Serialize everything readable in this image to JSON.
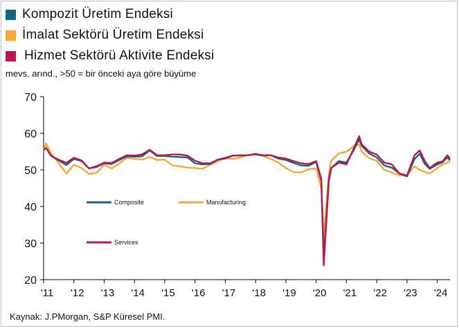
{
  "legend_top": [
    {
      "label": "Kompozit Üretim Endeksi",
      "color": "#17657c"
    },
    {
      "label": "İmalat Sektörü Üretim Endeksi",
      "color": "#f4a73c"
    },
    {
      "label": "Hizmet Sektörü Aktivite Endeksi",
      "color": "#b5194f"
    }
  ],
  "subtitle": "mevs. arınd., >50 = bir önceki aya göre büyüme",
  "source": "Kaynak: J.PMorgan, S&P Küresel PMI.",
  "chart_data": {
    "type": "line",
    "title": "",
    "xlabel": "",
    "ylabel": "",
    "ylim": [
      20,
      70
    ],
    "yticks": [
      20,
      30,
      40,
      50,
      60,
      70
    ],
    "xlim": [
      2011.0,
      2024.42
    ],
    "xticks": [
      "'11",
      "'12",
      "'13",
      "'14",
      "'15",
      "'16",
      "'17",
      "'18",
      "'19",
      "'20",
      "'21",
      "'22",
      "'23",
      "'24"
    ],
    "grid": false,
    "legend_inside": [
      {
        "label": "Composite",
        "color": "#17657c"
      },
      {
        "label": "Manufacturing",
        "color": "#f4a73c"
      },
      {
        "label": "Services",
        "color": "#b5194f"
      }
    ],
    "series": [
      {
        "name": "Composite",
        "color": "#17657c",
        "points": [
          [
            2011.0,
            55.5
          ],
          [
            2011.08,
            56.0
          ],
          [
            2011.25,
            53.8
          ],
          [
            2011.5,
            52.6
          ],
          [
            2011.75,
            51.3
          ],
          [
            2012.0,
            53.0
          ],
          [
            2012.25,
            52.4
          ],
          [
            2012.5,
            50.4
          ],
          [
            2012.75,
            50.8
          ],
          [
            2013.0,
            51.8
          ],
          [
            2013.25,
            51.6
          ],
          [
            2013.5,
            52.7
          ],
          [
            2013.75,
            53.7
          ],
          [
            2014.0,
            53.6
          ],
          [
            2014.25,
            53.7
          ],
          [
            2014.5,
            55.3
          ],
          [
            2014.75,
            53.8
          ],
          [
            2015.0,
            53.8
          ],
          [
            2015.25,
            53.6
          ],
          [
            2015.5,
            53.5
          ],
          [
            2015.75,
            53.4
          ],
          [
            2016.0,
            51.8
          ],
          [
            2016.25,
            51.5
          ],
          [
            2016.5,
            51.6
          ],
          [
            2016.75,
            52.8
          ],
          [
            2017.0,
            53.1
          ],
          [
            2017.25,
            53.9
          ],
          [
            2017.5,
            53.9
          ],
          [
            2017.75,
            54.0
          ],
          [
            2018.0,
            54.2
          ],
          [
            2018.25,
            53.9
          ],
          [
            2018.5,
            54.0
          ],
          [
            2018.75,
            53.1
          ],
          [
            2019.0,
            52.7
          ],
          [
            2019.25,
            51.9
          ],
          [
            2019.5,
            51.2
          ],
          [
            2019.75,
            51.1
          ],
          [
            2020.0,
            52.2
          ],
          [
            2020.17,
            47.0
          ],
          [
            2020.25,
            26.2
          ],
          [
            2020.33,
            36.0
          ],
          [
            2020.42,
            47.5
          ],
          [
            2020.5,
            50.5
          ],
          [
            2020.75,
            52.4
          ],
          [
            2021.0,
            52.0
          ],
          [
            2021.25,
            55.5
          ],
          [
            2021.42,
            58.4
          ],
          [
            2021.5,
            56.6
          ],
          [
            2021.75,
            54.5
          ],
          [
            2022.0,
            53.4
          ],
          [
            2022.25,
            51.2
          ],
          [
            2022.5,
            50.6
          ],
          [
            2022.75,
            49.0
          ],
          [
            2023.0,
            48.2
          ],
          [
            2023.25,
            53.0
          ],
          [
            2023.42,
            54.4
          ],
          [
            2023.58,
            51.7
          ],
          [
            2023.75,
            50.3
          ],
          [
            2024.0,
            51.5
          ],
          [
            2024.17,
            52.1
          ],
          [
            2024.33,
            53.4
          ],
          [
            2024.42,
            52.6
          ]
        ]
      },
      {
        "name": "Manufacturing",
        "color": "#f4a73c",
        "points": [
          [
            2011.0,
            55.5
          ],
          [
            2011.08,
            57.2
          ],
          [
            2011.25,
            54.5
          ],
          [
            2011.5,
            51.8
          ],
          [
            2011.75,
            49.0
          ],
          [
            2012.0,
            51.4
          ],
          [
            2012.25,
            50.5
          ],
          [
            2012.5,
            48.9
          ],
          [
            2012.75,
            49.2
          ],
          [
            2013.0,
            51.4
          ],
          [
            2013.25,
            50.4
          ],
          [
            2013.5,
            51.8
          ],
          [
            2013.75,
            53.3
          ],
          [
            2014.0,
            53.0
          ],
          [
            2014.25,
            52.8
          ],
          [
            2014.5,
            53.5
          ],
          [
            2014.75,
            52.7
          ],
          [
            2015.0,
            52.8
          ],
          [
            2015.25,
            51.2
          ],
          [
            2015.5,
            51.0
          ],
          [
            2015.75,
            50.6
          ],
          [
            2016.0,
            50.5
          ],
          [
            2016.25,
            50.3
          ],
          [
            2016.5,
            51.4
          ],
          [
            2016.75,
            52.4
          ],
          [
            2017.0,
            53.2
          ],
          [
            2017.25,
            53.0
          ],
          [
            2017.5,
            53.4
          ],
          [
            2017.75,
            54.0
          ],
          [
            2018.0,
            54.5
          ],
          [
            2018.25,
            53.8
          ],
          [
            2018.5,
            53.0
          ],
          [
            2018.75,
            52.0
          ],
          [
            2019.0,
            50.5
          ],
          [
            2019.25,
            49.4
          ],
          [
            2019.5,
            49.3
          ],
          [
            2019.75,
            50.2
          ],
          [
            2020.0,
            50.4
          ],
          [
            2020.17,
            45.0
          ],
          [
            2020.25,
            32.0
          ],
          [
            2020.33,
            40.0
          ],
          [
            2020.42,
            49.0
          ],
          [
            2020.5,
            52.5
          ],
          [
            2020.75,
            54.5
          ],
          [
            2021.0,
            55.0
          ],
          [
            2021.25,
            56.5
          ],
          [
            2021.42,
            57.0
          ],
          [
            2021.5,
            55.0
          ],
          [
            2021.75,
            53.2
          ],
          [
            2022.0,
            52.5
          ],
          [
            2022.25,
            50.0
          ],
          [
            2022.5,
            49.3
          ],
          [
            2022.75,
            48.5
          ],
          [
            2023.0,
            48.5
          ],
          [
            2023.25,
            51.0
          ],
          [
            2023.42,
            50.0
          ],
          [
            2023.58,
            49.5
          ],
          [
            2023.75,
            49.0
          ],
          [
            2024.0,
            50.5
          ],
          [
            2024.17,
            51.5
          ],
          [
            2024.33,
            52.0
          ],
          [
            2024.42,
            52.3
          ]
        ]
      },
      {
        "name": "Services",
        "color": "#b5194f",
        "points": [
          [
            2011.0,
            55.5
          ],
          [
            2011.08,
            56.0
          ],
          [
            2011.25,
            53.8
          ],
          [
            2011.5,
            52.8
          ],
          [
            2011.75,
            51.9
          ],
          [
            2012.0,
            53.3
          ],
          [
            2012.25,
            52.6
          ],
          [
            2012.5,
            50.4
          ],
          [
            2012.75,
            51.0
          ],
          [
            2013.0,
            52.0
          ],
          [
            2013.25,
            51.9
          ],
          [
            2013.5,
            53.0
          ],
          [
            2013.75,
            54.0
          ],
          [
            2014.0,
            53.9
          ],
          [
            2014.25,
            54.2
          ],
          [
            2014.5,
            55.5
          ],
          [
            2014.75,
            54.0
          ],
          [
            2015.0,
            54.0
          ],
          [
            2015.25,
            54.2
          ],
          [
            2015.5,
            54.2
          ],
          [
            2015.75,
            53.9
          ],
          [
            2016.0,
            52.5
          ],
          [
            2016.25,
            51.8
          ],
          [
            2016.5,
            51.8
          ],
          [
            2016.75,
            52.8
          ],
          [
            2017.0,
            53.3
          ],
          [
            2017.25,
            53.9
          ],
          [
            2017.5,
            54.0
          ],
          [
            2017.75,
            54.0
          ],
          [
            2018.0,
            54.3
          ],
          [
            2018.25,
            54.0
          ],
          [
            2018.5,
            54.0
          ],
          [
            2018.75,
            53.4
          ],
          [
            2019.0,
            53.1
          ],
          [
            2019.25,
            52.4
          ],
          [
            2019.5,
            51.8
          ],
          [
            2019.75,
            51.6
          ],
          [
            2020.0,
            52.4
          ],
          [
            2020.17,
            47.5
          ],
          [
            2020.25,
            23.9
          ],
          [
            2020.33,
            35.0
          ],
          [
            2020.42,
            47.0
          ],
          [
            2020.5,
            50.5
          ],
          [
            2020.75,
            52.0
          ],
          [
            2021.0,
            51.5
          ],
          [
            2021.25,
            56.0
          ],
          [
            2021.42,
            59.2
          ],
          [
            2021.5,
            57.0
          ],
          [
            2021.75,
            55.0
          ],
          [
            2022.0,
            54.2
          ],
          [
            2022.25,
            52.0
          ],
          [
            2022.5,
            51.5
          ],
          [
            2022.75,
            49.0
          ],
          [
            2023.0,
            48.5
          ],
          [
            2023.25,
            54.0
          ],
          [
            2023.42,
            55.3
          ],
          [
            2023.58,
            52.5
          ],
          [
            2023.75,
            50.5
          ],
          [
            2024.0,
            52.0
          ],
          [
            2024.17,
            52.3
          ],
          [
            2024.33,
            54.0
          ],
          [
            2024.42,
            53.1
          ]
        ]
      }
    ]
  }
}
